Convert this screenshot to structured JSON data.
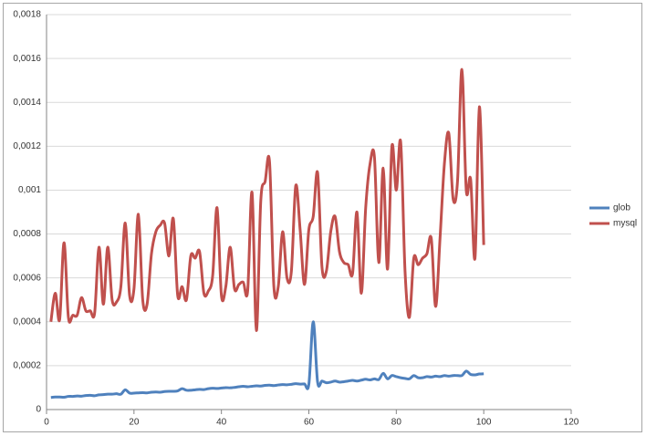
{
  "chart_data": {
    "type": "line",
    "x": [
      1,
      2,
      3,
      4,
      5,
      6,
      7,
      8,
      9,
      10,
      11,
      12,
      13,
      14,
      15,
      16,
      17,
      18,
      19,
      20,
      21,
      22,
      23,
      24,
      25,
      26,
      27,
      28,
      29,
      30,
      31,
      32,
      33,
      34,
      35,
      36,
      37,
      38,
      39,
      40,
      41,
      42,
      43,
      44,
      45,
      46,
      47,
      48,
      49,
      50,
      51,
      52,
      53,
      54,
      55,
      56,
      57,
      58,
      59,
      60,
      61,
      62,
      63,
      64,
      65,
      66,
      67,
      68,
      69,
      70,
      71,
      72,
      73,
      74,
      75,
      76,
      77,
      78,
      79,
      80,
      81,
      82,
      83,
      84,
      85,
      86,
      87,
      88,
      89,
      90,
      91,
      92,
      93,
      94,
      95,
      96,
      97,
      98,
      99,
      100
    ],
    "series": [
      {
        "name": "glob",
        "color": "#4f81bd",
        "values": [
          5.5e-05,
          5.7e-05,
          5.7e-05,
          5.6e-05,
          6e-05,
          6e-05,
          6.2e-05,
          6.1e-05,
          6.4e-05,
          6.5e-05,
          6.3e-05,
          6.7e-05,
          6.8e-05,
          7e-05,
          7e-05,
          7.2e-05,
          7e-05,
          9e-05,
          7.5e-05,
          7.5e-05,
          7.6e-05,
          7.7e-05,
          7.6e-05,
          7.9e-05,
          8e-05,
          7.9e-05,
          8.2e-05,
          8.3e-05,
          8.3e-05,
          8.5e-05,
          9.5e-05,
          8.8e-05,
          8.8e-05,
          9e-05,
          9.2e-05,
          9.1e-05,
          9.5e-05,
          9.7e-05,
          9.6e-05,
          9.8e-05,
          0.0001,
          9.9e-05,
          0.000101,
          0.000104,
          0.000106,
          0.000104,
          0.000106,
          0.000108,
          0.000107,
          0.00011,
          0.000111,
          0.000109,
          0.000112,
          0.000114,
          0.000113,
          0.000115,
          0.000118,
          0.000116,
          0.000117,
          0.000115,
          0.0004,
          0.000125,
          0.00013,
          0.000122,
          0.000125,
          0.00013,
          0.000125,
          0.000127,
          0.00013,
          0.000133,
          0.00013,
          0.000134,
          0.000138,
          0.000135,
          0.00014,
          0.000137,
          0.000165,
          0.00014,
          0.000155,
          0.00015,
          0.000145,
          0.000142,
          0.00014,
          0.000155,
          0.000145,
          0.000145,
          0.00015,
          0.000148,
          0.000152,
          0.00015,
          0.000155,
          0.000152,
          0.000155,
          0.000155,
          0.000155,
          0.000175,
          0.00016,
          0.000158,
          0.000162,
          0.000163
        ]
      },
      {
        "name": "mysql",
        "color": "#c0504d",
        "values": [
          0.0004,
          0.00053,
          0.00041,
          0.00076,
          0.00042,
          0.00043,
          0.00043,
          0.00051,
          0.00045,
          0.00045,
          0.00044,
          0.00074,
          0.00048,
          0.00074,
          0.0005,
          0.00049,
          0.00056,
          0.00085,
          0.00052,
          0.00055,
          0.00089,
          0.0005,
          0.00048,
          0.00071,
          0.00081,
          0.00084,
          0.00085,
          0.0007,
          0.00087,
          0.00052,
          0.00056,
          0.0005,
          0.0007,
          0.00069,
          0.00072,
          0.00053,
          0.00054,
          0.00061,
          0.00092,
          0.00052,
          0.00056,
          0.00074,
          0.00055,
          0.00057,
          0.00058,
          0.00054,
          0.00099,
          0.00036,
          0.00095,
          0.00104,
          0.00113,
          0.00056,
          0.00056,
          0.00081,
          0.0006,
          0.00063,
          0.00102,
          0.00082,
          0.00057,
          0.00082,
          0.00088,
          0.00108,
          0.00065,
          0.00063,
          0.00081,
          0.00088,
          0.00072,
          0.00067,
          0.00066,
          0.00062,
          0.0009,
          0.00053,
          0.00092,
          0.00112,
          0.00115,
          0.00067,
          0.0011,
          0.00064,
          0.0012,
          0.001,
          0.00122,
          0.00063,
          0.00042,
          0.00069,
          0.00066,
          0.00069,
          0.00071,
          0.00078,
          0.00047,
          0.00078,
          0.00112,
          0.00126,
          0.00096,
          0.00104,
          0.00155,
          0.001,
          0.00105,
          0.00069,
          0.00138,
          0.00075
        ]
      }
    ],
    "xlim": [
      0,
      120
    ],
    "xticks": [
      0,
      20,
      40,
      60,
      80,
      100,
      120
    ],
    "ylim": [
      0,
      0.0018
    ],
    "yticks": [
      0,
      {
        "value": 0.0002,
        "label": "0,0002"
      },
      {
        "value": 0.0004,
        "label": "0,0004"
      },
      {
        "value": 0.0006,
        "label": "0,0006"
      },
      {
        "value": 0.0008,
        "label": "0,0008"
      },
      {
        "value": 0.001,
        "label": "0,001"
      },
      {
        "value": 0.0012,
        "label": "0,0012"
      },
      {
        "value": 0.0014,
        "label": "0,0014"
      },
      {
        "value": 0.0016,
        "label": "0,0016"
      },
      {
        "value": 0.0018,
        "label": "0,0018"
      }
    ],
    "grid": true,
    "legend": "right"
  }
}
